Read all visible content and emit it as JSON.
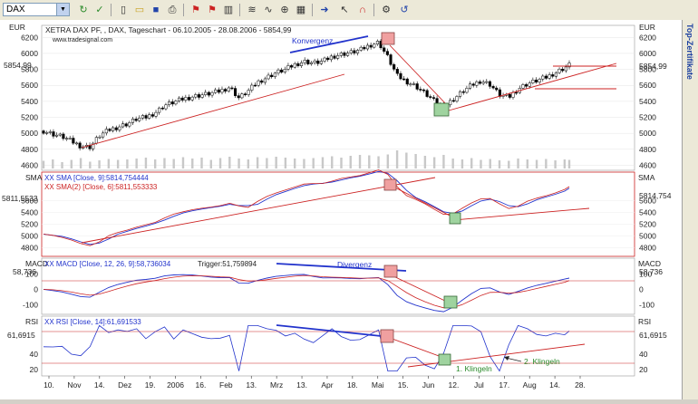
{
  "toolbar": {
    "symbol": "DAX",
    "buttons": [
      "refresh-icon",
      "tick-icon",
      "document-icon",
      "open-icon",
      "save-icon",
      "print-icon",
      "flag-icon",
      "chart-type-icon",
      "indicator-icon",
      "zoom-icon",
      "cursor-icon",
      "magnet-icon",
      "settings-icon",
      "undo-icon"
    ]
  },
  "side_panel": {
    "label": "Top-Zertifikate"
  },
  "chart_data": [
    {
      "panel": "price",
      "type": "candlestick",
      "title": "XETRA DAX PF, , DAX, Tageschart - 06.10.2005 - 28.08.2006 - 5854,99",
      "subtitle": "www.tradesignal.com",
      "currency_left": "EUR",
      "currency_right": "EUR",
      "last_value": "5854,99",
      "y_ticks": [
        "6200",
        "6000",
        "5800",
        "5600",
        "5400",
        "5200",
        "5000",
        "4800",
        "4600"
      ],
      "y_tick_values": [
        6200,
        6000,
        5800,
        5600,
        5400,
        5200,
        5000,
        4800,
        4600
      ],
      "ylim": [
        4560,
        6260
      ],
      "annotation": "Konvergenz",
      "series": [
        {
          "x": [
            0,
            4,
            8,
            12,
            16,
            20,
            24,
            28,
            32,
            36,
            40,
            44,
            48,
            52,
            56,
            60,
            64,
            68,
            72,
            76,
            80,
            84,
            88,
            92,
            96,
            100,
            104,
            108,
            112,
            116,
            120,
            124,
            128,
            132,
            136,
            140,
            144,
            148,
            152,
            156,
            160,
            164,
            168,
            172,
            176,
            180,
            184,
            188,
            192,
            196,
            200,
            204,
            208,
            212,
            216,
            220,
            224,
            226
          ],
          "y": [
            5030,
            4990,
            4960,
            4900,
            4840,
            4830,
            4970,
            5040,
            5080,
            5120,
            5180,
            5200,
            5260,
            5350,
            5390,
            5430,
            5460,
            5480,
            5500,
            5530,
            5580,
            5440,
            5530,
            5640,
            5700,
            5760,
            5800,
            5860,
            5900,
            5880,
            5900,
            5960,
            5990,
            6010,
            6040,
            6100,
            6140,
            5950,
            5720,
            5650,
            5590,
            5500,
            5400,
            5330,
            5420,
            5520,
            5600,
            5660,
            5610,
            5480,
            5450,
            5560,
            5620,
            5660,
            5700,
            5760,
            5820,
            5855
          ]
        }
      ],
      "volume": [
        34,
        40,
        28,
        38,
        46,
        30,
        36,
        42,
        38,
        40,
        44,
        48,
        40,
        46,
        42,
        50,
        44,
        48,
        38,
        46,
        52,
        44,
        40,
        50,
        46,
        52,
        48,
        44,
        42,
        46,
        50,
        54,
        48,
        56,
        60,
        58,
        54,
        62,
        80,
        70,
        64,
        56,
        50,
        60,
        44,
        40,
        46,
        38,
        42,
        36,
        34,
        44,
        40,
        38,
        42,
        36,
        40,
        38
      ]
    },
    {
      "panel": "sma",
      "type": "line",
      "label_left": "SMA",
      "label_right": "SMA",
      "series": [
        {
          "name": "XX SMA [Close, 9]:5814,754444",
          "color": "#2233cc"
        },
        {
          "name": "XX SMA(2) [Close, 6]:5811,553333",
          "color": "#cc2222"
        }
      ],
      "last_values": [
        "5811,5533",
        "5814,754"
      ],
      "y_ticks": [
        "5600",
        "5400",
        "5200",
        "5000",
        "4800"
      ],
      "y_tick_values": [
        5600,
        5400,
        5200,
        5000,
        4800
      ],
      "ylim": [
        4700,
        5960
      ]
    },
    {
      "panel": "macd",
      "type": "line",
      "label_left": "MACD",
      "label_right": "MACD",
      "series": [
        {
          "name": "XX MACD [Close, 12, 26, 9]:58,736034",
          "color": "#2233cc"
        },
        {
          "name": "Trigger:51,759894",
          "color": "#cc2222"
        }
      ],
      "last_value": "58,736",
      "y_ticks": [
        "100",
        "0",
        "-100"
      ],
      "y_tick_values": [
        100,
        0,
        -100
      ],
      "ylim": [
        -150,
        160
      ],
      "annotation": "Divergenz"
    },
    {
      "panel": "rsi",
      "type": "line",
      "label_left": "RSI",
      "label_right": "RSI",
      "series": [
        {
          "name": "XX RSI [Close, 14]:61,691533",
          "color": "#2233cc"
        }
      ],
      "last_value": "61,6915",
      "y_ticks": [
        "40",
        "20"
      ],
      "y_tick_values": [
        40,
        20
      ],
      "ylim": [
        14,
        82
      ],
      "annotations": [
        "1. Klingeln",
        "2. Klingeln"
      ]
    }
  ],
  "x_axis": {
    "labels": [
      "10.",
      "Nov",
      "14.",
      "Dez",
      "19.",
      "2006",
      "16.",
      "Feb",
      "13.",
      "Mrz",
      "13.",
      "Apr",
      "18.",
      "Mai",
      "15.",
      "Jun",
      "12.",
      "Jul",
      "17.",
      "Aug",
      "14.",
      "28."
    ]
  }
}
